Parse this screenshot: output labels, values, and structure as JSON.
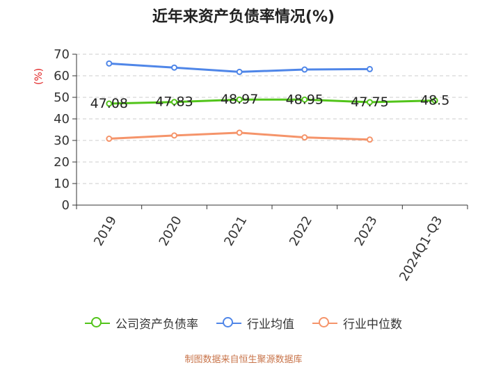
{
  "title": "近年来资产负债率情况(%)",
  "footer": "制图数据来自恒生聚源数据库",
  "colors": {
    "company": "#52c41a",
    "industry_avg": "#4f86e8",
    "industry_median": "#f5946a",
    "unit": "#e02020"
  },
  "chart_data": {
    "type": "line",
    "title": "近年来资产负债率情况(%)",
    "ylabel": "(%)",
    "xlabel": "",
    "categories": [
      "2019",
      "2020",
      "2021",
      "2022",
      "2023",
      "2024Q1-Q3"
    ],
    "ylim": [
      0,
      70
    ],
    "yticks": [
      0,
      10,
      20,
      30,
      40,
      50,
      60,
      70
    ],
    "grid": true,
    "legend_position": "bottom",
    "series": [
      {
        "name": "公司资产负债率",
        "color": "#52c41a",
        "values": [
          47.08,
          47.83,
          48.97,
          48.95,
          47.75,
          48.5
        ],
        "labels": [
          "47.08",
          "47.83",
          "48.97",
          "48.95",
          "47.75",
          "48.5"
        ]
      },
      {
        "name": "行业均值",
        "color": "#4f86e8",
        "values": [
          65.7,
          63.8,
          61.8,
          62.9,
          63.1,
          null
        ]
      },
      {
        "name": "行业中位数",
        "color": "#f5946a",
        "values": [
          30.8,
          32.3,
          33.6,
          31.4,
          30.4,
          null
        ]
      }
    ]
  }
}
